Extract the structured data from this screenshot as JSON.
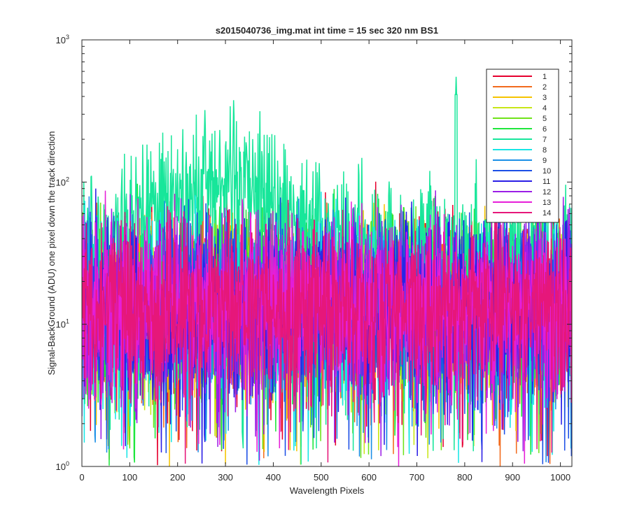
{
  "chart_data": {
    "type": "line",
    "title": "s2015040736_img.mat int time = 15 sec  320 nm BS1",
    "xlabel": "Wavelength Pixels",
    "ylabel": "Signal-BackGround (ADU) one pixel down the track direction",
    "xlim": [
      0,
      1024
    ],
    "ylim": [
      1,
      1000
    ],
    "yscale": "log",
    "xticks": [
      0,
      100,
      200,
      300,
      400,
      500,
      600,
      700,
      800,
      900,
      1000
    ],
    "xtick_labels": [
      "0",
      "100",
      "200",
      "300",
      "400",
      "500",
      "600",
      "700",
      "800",
      "900",
      "1000"
    ],
    "yticks": [
      1,
      10,
      100,
      1000
    ],
    "ytick_base": "10",
    "ytick_exponents": [
      "0",
      "1",
      "2",
      "3"
    ],
    "grid": false,
    "legend_position": "top-right",
    "n_points": 1024,
    "series": [
      {
        "name": "1",
        "color": "#e6002e",
        "level": 15,
        "spread": 0.55
      },
      {
        "name": "2",
        "color": "#f26b1d",
        "level": 14,
        "spread": 0.55
      },
      {
        "name": "3",
        "color": "#f5c400",
        "level": 14,
        "spread": 0.55
      },
      {
        "name": "4",
        "color": "#c8e617",
        "level": 13,
        "spread": 0.55
      },
      {
        "name": "5",
        "color": "#6fe31a",
        "level": 15,
        "spread": 0.55
      },
      {
        "name": "6",
        "color": "#1ee63c",
        "level": 16,
        "spread": 0.55
      },
      {
        "name": "7",
        "color": "#17e69a",
        "level": 35,
        "spread": 0.45,
        "peak_x": 782,
        "peak_y": 550
      },
      {
        "name": "8",
        "color": "#17e6e6",
        "level": 14,
        "spread": 0.55
      },
      {
        "name": "9",
        "color": "#1a8fe6",
        "level": 13,
        "spread": 0.55
      },
      {
        "name": "10",
        "color": "#1c4fe6",
        "level": 14,
        "spread": 0.55
      },
      {
        "name": "11",
        "color": "#2a1ee6",
        "level": 14,
        "spread": 0.55
      },
      {
        "name": "12",
        "color": "#9b1ee6",
        "level": 15,
        "spread": 0.55
      },
      {
        "name": "13",
        "color": "#e61ed8",
        "level": 14,
        "spread": 0.55
      },
      {
        "name": "14",
        "color": "#e6177a",
        "level": 14,
        "spread": 0.55
      }
    ]
  }
}
